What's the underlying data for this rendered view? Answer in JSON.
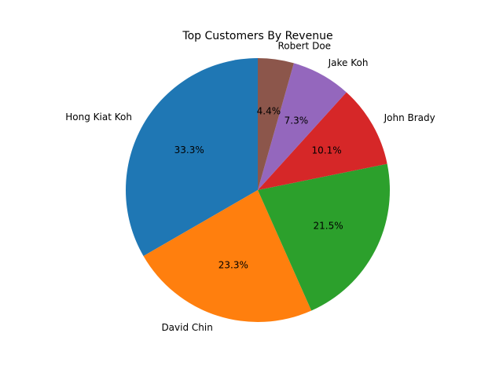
{
  "chart_data": {
    "type": "pie",
    "title": "Top Customers By Revenue",
    "categories": [
      "Hong Kiat Koh",
      "David Chin",
      "",
      "John Brady",
      "Jake Koh",
      "Robert Doe"
    ],
    "values": [
      33.3,
      23.3,
      21.5,
      10.1,
      7.3,
      4.4
    ],
    "percent_labels": [
      "33.3%",
      "23.3%",
      "21.5%",
      "10.1%",
      "7.3%",
      "4.4%"
    ],
    "colors": [
      "#1f77b4",
      "#ff7f0e",
      "#2ca02c",
      "#d62728",
      "#9467bd",
      "#8c564b"
    ],
    "start_angle_deg": 90,
    "direction": "counterclockwise"
  }
}
